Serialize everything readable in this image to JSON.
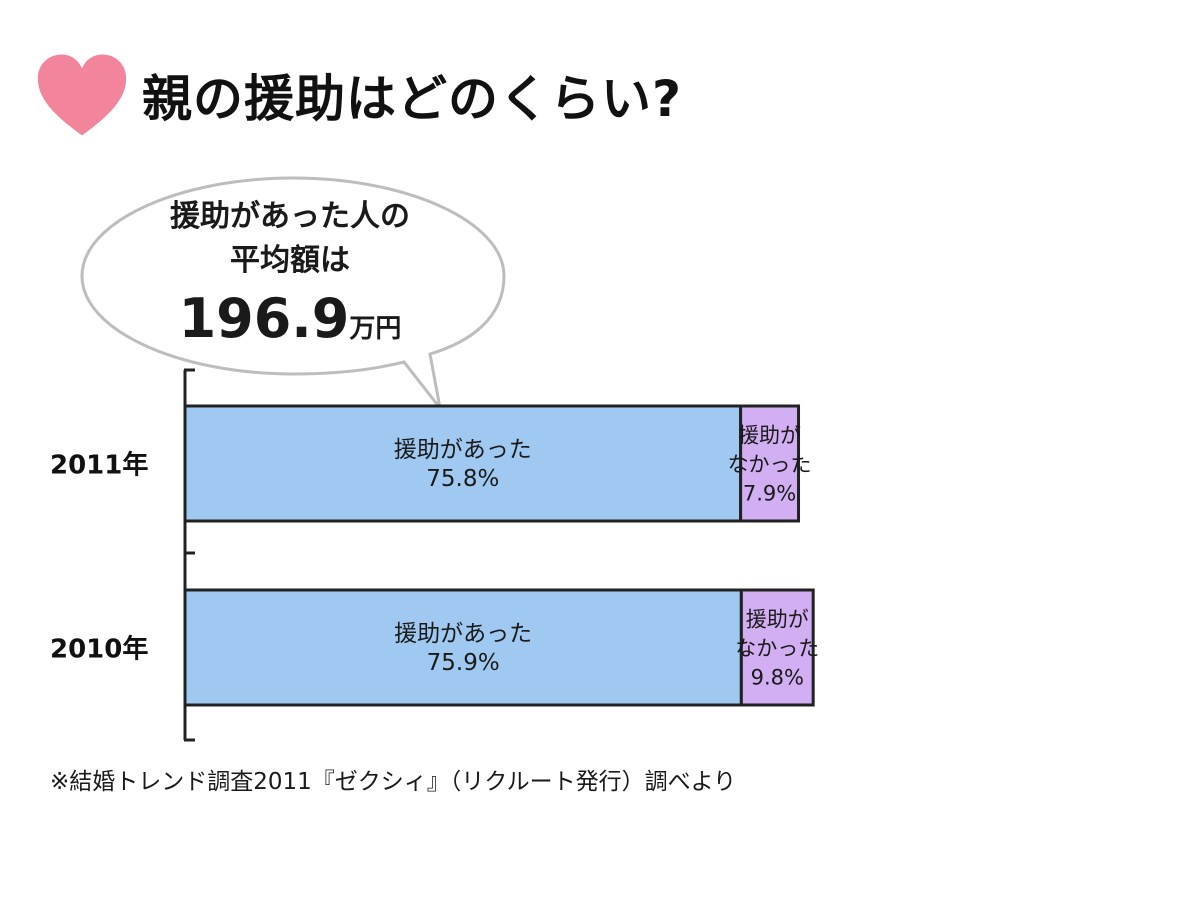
{
  "title": "親の援助はどのくらい?",
  "heart_color": "#f2849c",
  "callout": {
    "line1": "援助があった人の",
    "line2": "平均額は",
    "amount": "196.9",
    "unit": "万円"
  },
  "footnote": "※結婚トレンド調査2011『ゼクシィ』（リクルート発行）調べより",
  "chart_data": {
    "type": "bar",
    "orientation": "horizontal",
    "stacked": true,
    "categories": [
      "2011年",
      "2010年"
    ],
    "series": [
      {
        "label_lines": [
          "援助があった"
        ],
        "values": [
          75.8,
          75.9
        ],
        "value_labels": [
          "75.8%",
          "75.9%"
        ],
        "color": "#a0c9f2"
      },
      {
        "label_lines": [
          "援助が",
          "なかった"
        ],
        "values": [
          7.9,
          9.8
        ],
        "value_labels": [
          "7.9%",
          "9.8%"
        ],
        "color": "#d2aef3"
      }
    ],
    "title": "",
    "xlabel": "",
    "ylabel": "",
    "grid": false,
    "legend": "none"
  }
}
